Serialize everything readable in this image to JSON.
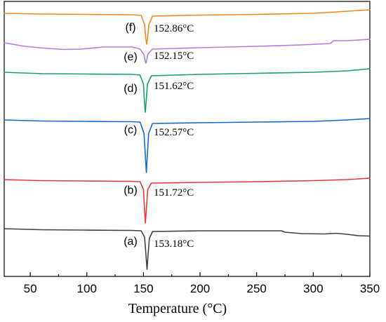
{
  "chart_data": {
    "type": "line",
    "title": "",
    "xlabel": "Temperature (°C)",
    "ylabel": "",
    "xlim": [
      27,
      350
    ],
    "xticks": [
      50,
      100,
      150,
      200,
      250,
      300,
      350
    ],
    "yticks_shown": false,
    "grid": false,
    "legend": "none",
    "series": [
      {
        "label": "(a)",
        "peak_label": "153.18°C",
        "peak_temperature": 153.18,
        "color": "#404040",
        "points": [
          [
            27,
            326
          ],
          [
            60,
            327.5
          ],
          [
            100,
            328
          ],
          [
            140,
            328.5
          ],
          [
            148,
            329
          ],
          [
            151,
            338
          ],
          [
            152.3,
            365
          ],
          [
            153.18,
            384
          ],
          [
            154,
            365
          ],
          [
            155.2,
            340
          ],
          [
            158,
            330
          ],
          [
            200,
            329
          ],
          [
            250,
            329
          ],
          [
            272,
            329
          ],
          [
            275,
            331
          ],
          [
            290,
            333
          ],
          [
            310,
            333.5
          ],
          [
            320,
            332.5
          ],
          [
            330,
            334
          ],
          [
            340,
            336
          ],
          [
            350,
            336.5
          ]
        ]
      },
      {
        "label": "(b)",
        "peak_label": "151.72°C",
        "peak_temperature": 151.72,
        "color": "#e8373a",
        "points": [
          [
            27,
            256
          ],
          [
            60,
            257.5
          ],
          [
            100,
            258
          ],
          [
            140,
            258.5
          ],
          [
            147,
            259
          ],
          [
            150,
            270
          ],
          [
            151.0,
            300
          ],
          [
            151.72,
            318
          ],
          [
            152.5,
            300
          ],
          [
            153.8,
            270
          ],
          [
            157,
            261
          ],
          [
            200,
            260
          ],
          [
            250,
            259
          ],
          [
            300,
            257.5
          ],
          [
            330,
            256
          ],
          [
            350,
            254
          ]
        ]
      },
      {
        "label": "(c)",
        "peak_label": "152.57°C",
        "peak_temperature": 152.57,
        "color": "#1468d3",
        "points": [
          [
            27,
            171
          ],
          [
            60,
            172.5
          ],
          [
            100,
            173
          ],
          [
            140,
            173.5
          ],
          [
            147,
            174
          ],
          [
            150.5,
            190
          ],
          [
            151.8,
            225
          ],
          [
            152.57,
            246
          ],
          [
            153.3,
            225
          ],
          [
            154.6,
            190
          ],
          [
            158,
            176
          ],
          [
            200,
            175
          ],
          [
            250,
            174
          ],
          [
            300,
            173
          ],
          [
            330,
            171
          ],
          [
            350,
            169
          ]
        ]
      },
      {
        "label": "(d)",
        "peak_label": "151.62°C",
        "peak_temperature": 151.62,
        "color": "#17a06b",
        "points": [
          [
            27,
            103
          ],
          [
            60,
            105
          ],
          [
            100,
            105.5
          ],
          [
            140,
            106
          ],
          [
            147,
            107
          ],
          [
            150,
            120
          ],
          [
            150.9,
            145
          ],
          [
            151.62,
            160
          ],
          [
            152.4,
            145
          ],
          [
            153.5,
            120
          ],
          [
            157,
            108
          ],
          [
            200,
            106
          ],
          [
            250,
            104.5
          ],
          [
            300,
            103
          ],
          [
            330,
            101
          ],
          [
            350,
            98
          ]
        ]
      },
      {
        "label": "(e)",
        "peak_label": "152.15°C",
        "peak_temperature": 152.15,
        "color": "#b97ae0",
        "points": [
          [
            27,
            61
          ],
          [
            45,
            66
          ],
          [
            65,
            69
          ],
          [
            80,
            70.5
          ],
          [
            95,
            70
          ],
          [
            115,
            67
          ],
          [
            140,
            67
          ],
          [
            147,
            70
          ],
          [
            150.5,
            78
          ],
          [
            151.4,
            86
          ],
          [
            152.15,
            90
          ],
          [
            152.9,
            86
          ],
          [
            153.9,
            77
          ],
          [
            158,
            70
          ],
          [
            200,
            68
          ],
          [
            250,
            66
          ],
          [
            290,
            64
          ],
          [
            315,
            62
          ],
          [
            318,
            58
          ],
          [
            330,
            58
          ],
          [
            350,
            56
          ]
        ]
      },
      {
        "label": "(f)",
        "peak_label": "152.86°C",
        "peak_temperature": 152.86,
        "color": "#f08a1e",
        "points": [
          [
            27,
            19
          ],
          [
            60,
            20
          ],
          [
            100,
            20.5
          ],
          [
            140,
            21
          ],
          [
            148,
            22
          ],
          [
            151,
            35
          ],
          [
            152.1,
            55
          ],
          [
            152.86,
            63
          ],
          [
            153.6,
            55
          ],
          [
            154.8,
            35
          ],
          [
            158,
            23
          ],
          [
            200,
            21.5
          ],
          [
            250,
            20.5
          ],
          [
            300,
            19
          ],
          [
            330,
            16
          ],
          [
            350,
            14
          ]
        ]
      }
    ]
  }
}
